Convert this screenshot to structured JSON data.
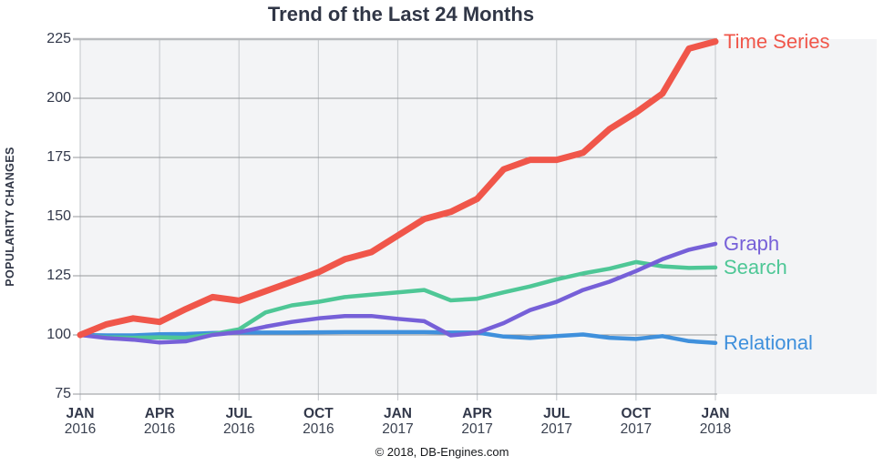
{
  "title": "Trend of the Last 24 Months",
  "y_axis_title": "POPULARITY CHANGES",
  "footer": "© 2018, DB-Engines.com",
  "colors": {
    "plot_background": "#f3f4f6",
    "grid_horizontal": "#94979b",
    "grid_vertical": "#cbced2",
    "grid_top_border": "#b9bbbe",
    "text_dark": "#303646"
  },
  "chart_data": {
    "type": "line",
    "title": "Trend of the Last 24 Months",
    "xlabel": "",
    "ylabel": "POPULARITY CHANGES",
    "ylim": [
      75,
      225
    ],
    "y_ticks": [
      225,
      200,
      175,
      150,
      125,
      100,
      75
    ],
    "grid": true,
    "legend_position": "right-end-labels",
    "x": [
      "Jan 2016",
      "Feb 2016",
      "Mar 2016",
      "Apr 2016",
      "May 2016",
      "Jun 2016",
      "Jul 2016",
      "Aug 2016",
      "Sep 2016",
      "Oct 2016",
      "Nov 2016",
      "Dec 2016",
      "Jan 2017",
      "Feb 2017",
      "Mar 2017",
      "Apr 2017",
      "May 2017",
      "Jun 2017",
      "Jul 2017",
      "Aug 2017",
      "Sep 2017",
      "Oct 2017",
      "Nov 2017",
      "Dec 2017",
      "Jan 2018"
    ],
    "x_ticks": [
      {
        "month": "JAN",
        "year": "2016",
        "index": 0
      },
      {
        "month": "APR",
        "year": "2016",
        "index": 3
      },
      {
        "month": "JUL",
        "year": "2016",
        "index": 6
      },
      {
        "month": "OCT",
        "year": "2016",
        "index": 9
      },
      {
        "month": "JAN",
        "year": "2017",
        "index": 12
      },
      {
        "month": "APR",
        "year": "2017",
        "index": 15
      },
      {
        "month": "JUL",
        "year": "2017",
        "index": 18
      },
      {
        "month": "OCT",
        "year": "2017",
        "index": 21
      },
      {
        "month": "JAN",
        "year": "2018",
        "index": 24
      }
    ],
    "series": [
      {
        "name": "Time Series",
        "color": "#f0564a",
        "line_width": 7,
        "values": [
          100,
          104.5,
          107,
          105.5,
          111,
          116,
          114.5,
          118.5,
          122.5,
          126.5,
          132,
          135,
          142,
          149,
          152,
          157.5,
          170,
          174,
          174,
          177,
          187,
          194,
          202,
          221,
          224
        ]
      },
      {
        "name": "Graph",
        "color": "#7660d8",
        "line_width": 4.5,
        "values": [
          100,
          98.7,
          98,
          96.8,
          97.3,
          100,
          101.2,
          103.5,
          105.5,
          107,
          108,
          108,
          106.8,
          105.8,
          99.8,
          100.9,
          105,
          110.5,
          114,
          119,
          122.5,
          127,
          132,
          136,
          138.5
        ]
      },
      {
        "name": "Search",
        "color": "#4ec796",
        "line_width": 4.5,
        "values": [
          100,
          99,
          98.8,
          99,
          98.8,
          100.3,
          102.4,
          109.5,
          112.5,
          114,
          116,
          117,
          118,
          119,
          114.6,
          115.3,
          118,
          120.5,
          123.5,
          126,
          128,
          130.8,
          129,
          128.3,
          128.5
        ]
      },
      {
        "name": "Relational",
        "color": "#3f90dc",
        "line_width": 4.5,
        "values": [
          100,
          99.8,
          99.8,
          100.3,
          100.4,
          100.8,
          101,
          101,
          101,
          101.1,
          101.2,
          101.2,
          101.2,
          101.2,
          101,
          101,
          99.3,
          98.7,
          99.5,
          100.2,
          98.8,
          98.3,
          99.5,
          97.4,
          96.6
        ]
      }
    ]
  }
}
